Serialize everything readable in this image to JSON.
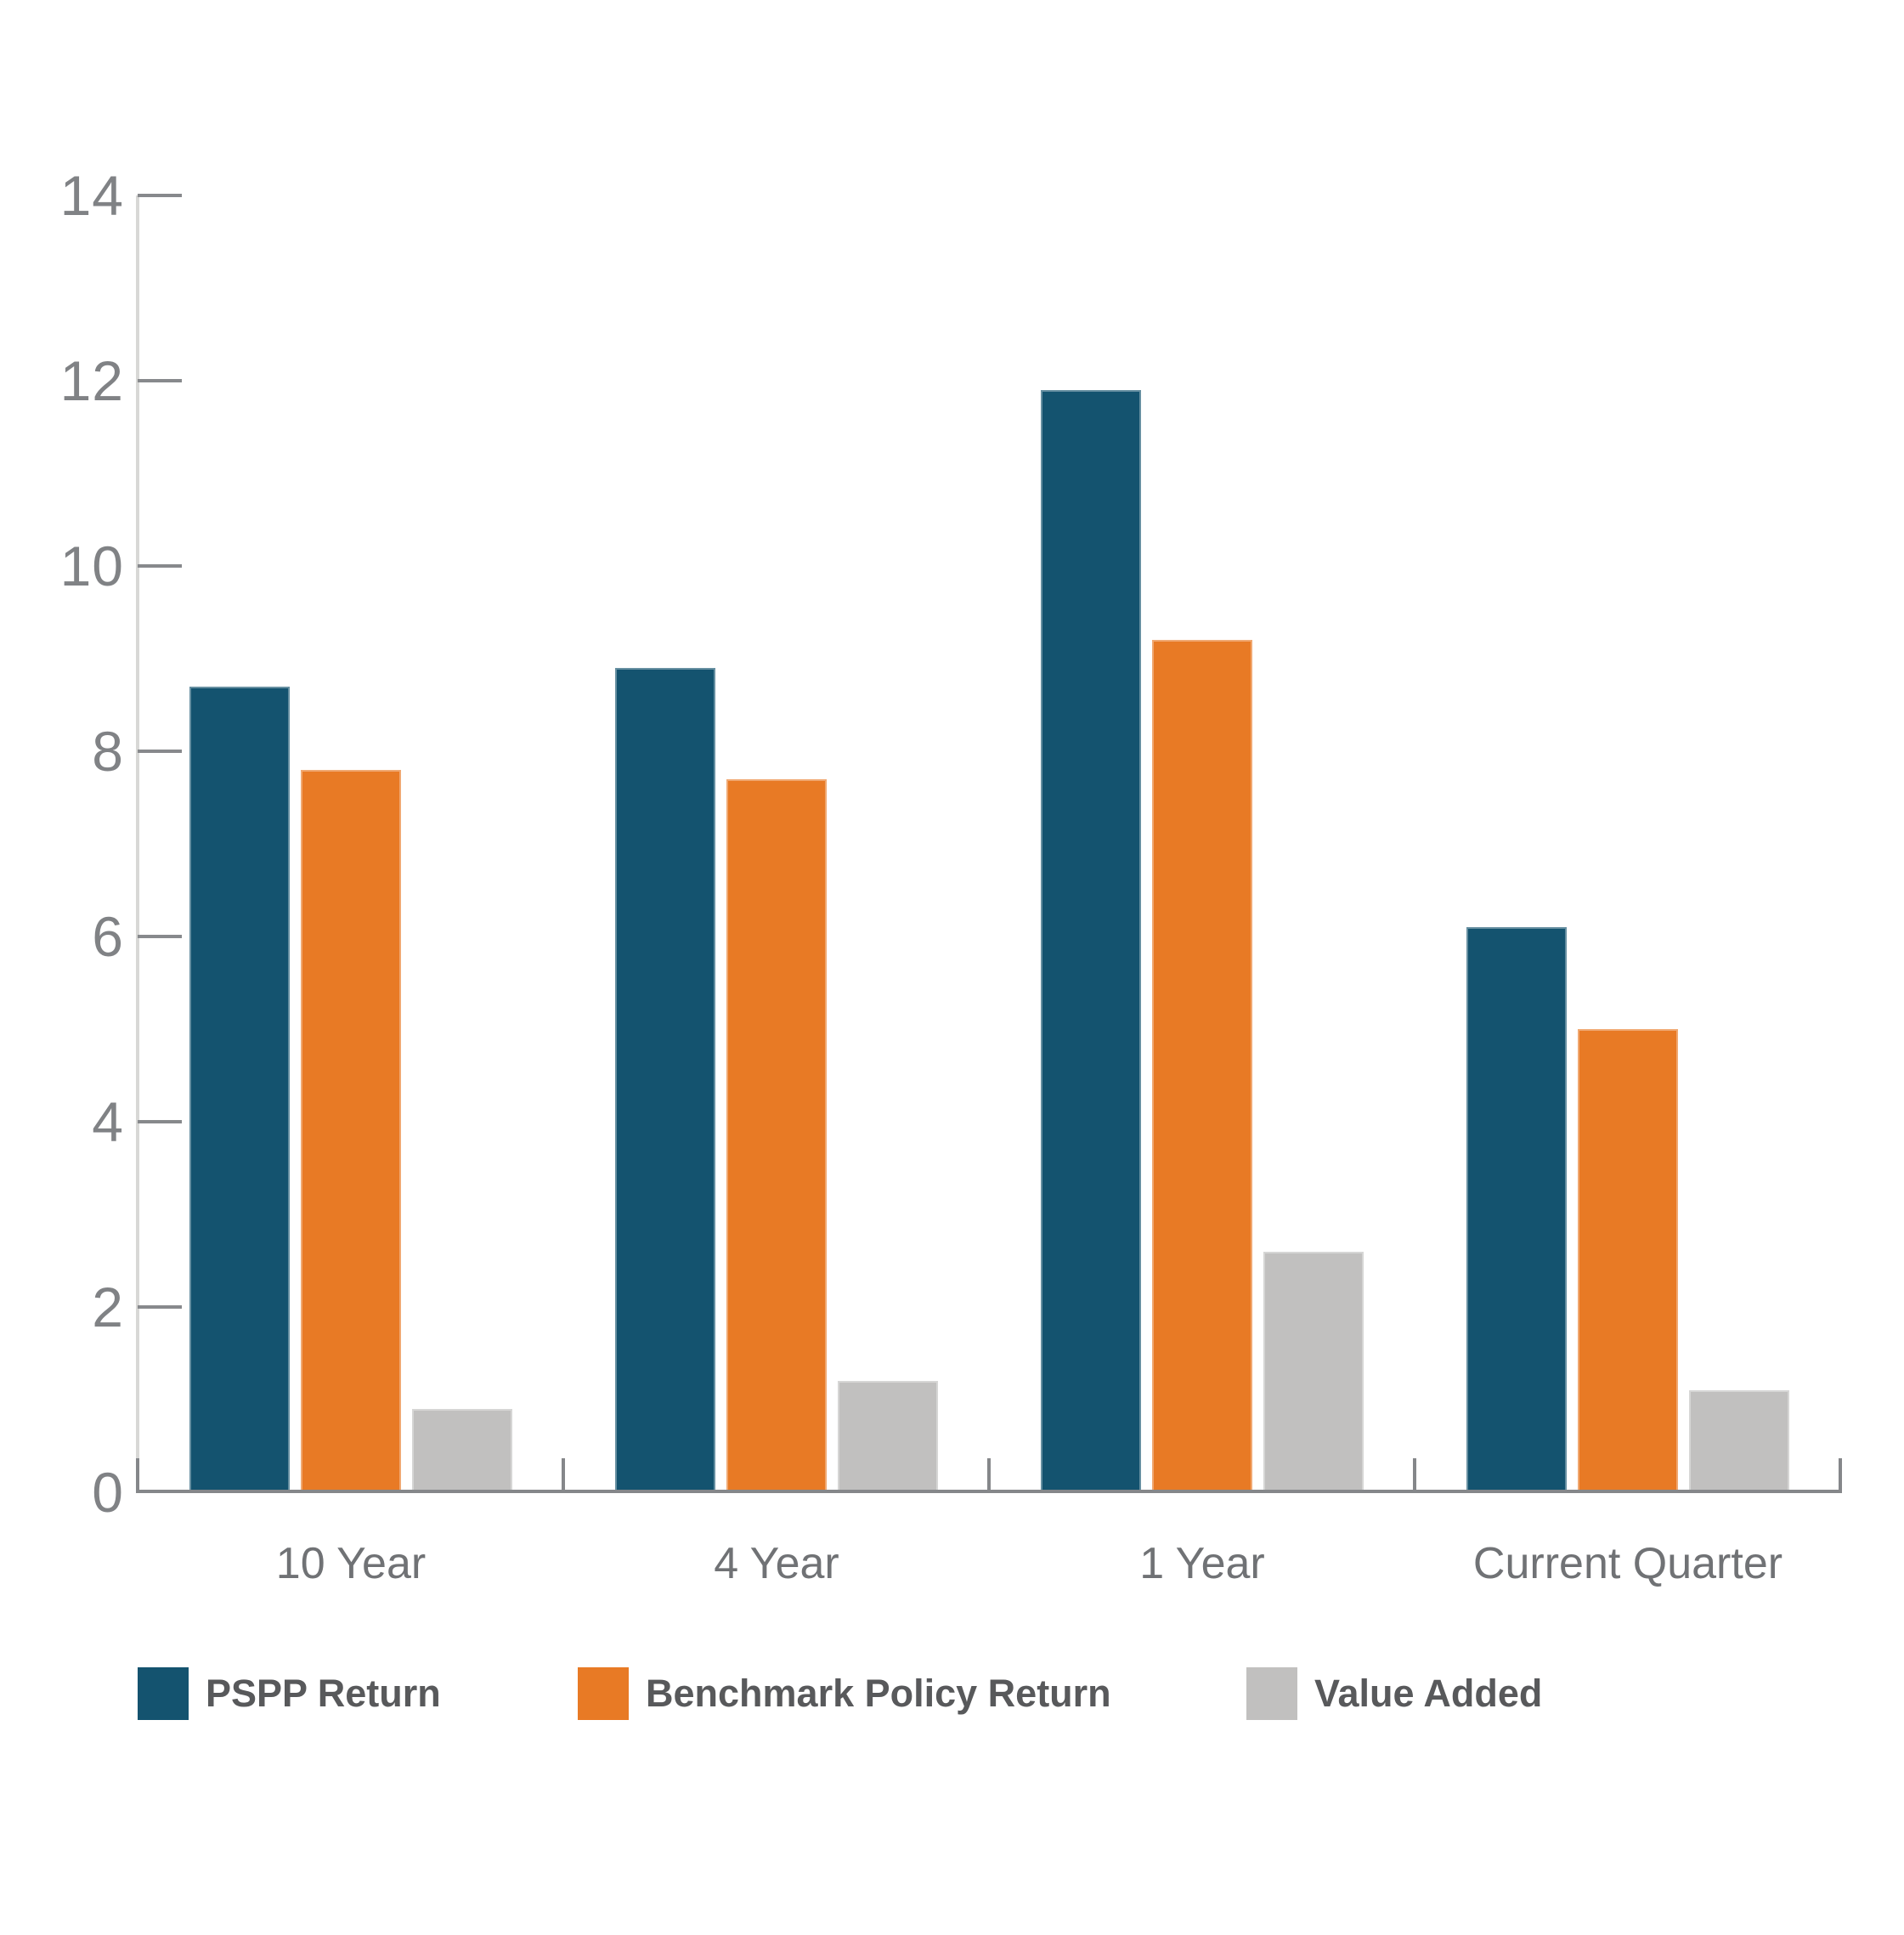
{
  "chart_data": {
    "type": "bar",
    "title": "",
    "xlabel": "",
    "ylabel": "",
    "categories": [
      "10 Year",
      "4 Year",
      "1 Year",
      "Current Quarter"
    ],
    "series": [
      {
        "name": "PSPP Return",
        "color": "#14536F",
        "values": [
          8.7,
          8.9,
          11.9,
          6.1
        ]
      },
      {
        "name": "Benchmark Policy Return",
        "color": "#E87A25",
        "values": [
          7.8,
          7.7,
          9.2,
          5.0
        ]
      },
      {
        "name": "Value Added",
        "color": "#C1C0BF",
        "values": [
          0.9,
          1.2,
          2.6,
          1.1
        ]
      }
    ],
    "ylim": [
      0,
      14
    ],
    "yticks": [
      0,
      2,
      4,
      6,
      8,
      10,
      12,
      14
    ],
    "grid": false,
    "legend_position": "bottom"
  }
}
